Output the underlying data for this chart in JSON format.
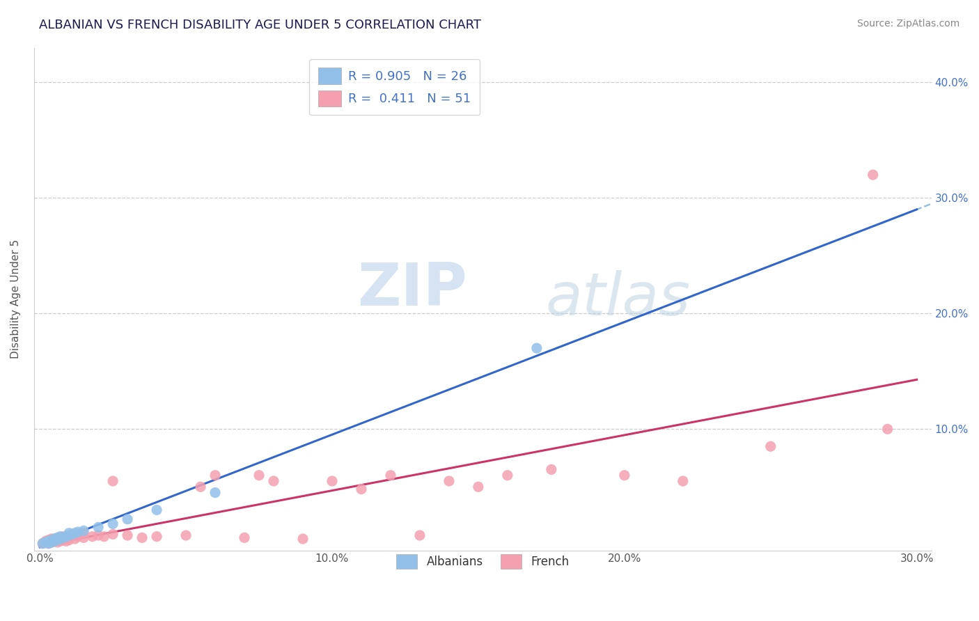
{
  "title": "ALBANIAN VS FRENCH DISABILITY AGE UNDER 5 CORRELATION CHART",
  "source": "Source: ZipAtlas.com",
  "ylabel": "Disability Age Under 5",
  "xlim": [
    -0.002,
    0.305
  ],
  "ylim": [
    -0.005,
    0.43
  ],
  "xtick_labels": [
    "0.0%",
    "10.0%",
    "20.0%",
    "30.0%"
  ],
  "xtick_vals": [
    0.0,
    0.1,
    0.2,
    0.3
  ],
  "ytick_labels": [
    "10.0%",
    "20.0%",
    "30.0%",
    "40.0%"
  ],
  "ytick_vals": [
    0.1,
    0.2,
    0.3,
    0.4
  ],
  "albanian_color": "#92c0e8",
  "french_color": "#f4a0b0",
  "albanian_line_color": "#3366cc",
  "french_line_color": "#cc3366",
  "dash_color": "#7ab0d8",
  "albanian_R": 0.905,
  "albanian_N": 26,
  "french_R": 0.411,
  "french_N": 51,
  "watermark_zip": "ZIP",
  "watermark_atlas": "atlas",
  "albanian_scatter": [
    [
      0.001,
      0.001
    ],
    [
      0.002,
      0.002
    ],
    [
      0.003,
      0.001
    ],
    [
      0.003,
      0.003
    ],
    [
      0.004,
      0.002
    ],
    [
      0.004,
      0.004
    ],
    [
      0.005,
      0.003
    ],
    [
      0.005,
      0.005
    ],
    [
      0.006,
      0.004
    ],
    [
      0.006,
      0.006
    ],
    [
      0.007,
      0.005
    ],
    [
      0.007,
      0.007
    ],
    [
      0.008,
      0.006
    ],
    [
      0.009,
      0.007
    ],
    [
      0.01,
      0.008
    ],
    [
      0.01,
      0.01
    ],
    [
      0.011,
      0.009
    ],
    [
      0.012,
      0.01
    ],
    [
      0.013,
      0.011
    ],
    [
      0.015,
      0.012
    ],
    [
      0.02,
      0.015
    ],
    [
      0.025,
      0.018
    ],
    [
      0.03,
      0.022
    ],
    [
      0.04,
      0.03
    ],
    [
      0.06,
      0.045
    ],
    [
      0.17,
      0.17
    ]
  ],
  "french_scatter": [
    [
      0.001,
      0.001
    ],
    [
      0.002,
      0.002
    ],
    [
      0.002,
      0.003
    ],
    [
      0.003,
      0.001
    ],
    [
      0.003,
      0.004
    ],
    [
      0.004,
      0.002
    ],
    [
      0.004,
      0.005
    ],
    [
      0.005,
      0.003
    ],
    [
      0.005,
      0.005
    ],
    [
      0.006,
      0.002
    ],
    [
      0.006,
      0.004
    ],
    [
      0.007,
      0.003
    ],
    [
      0.007,
      0.006
    ],
    [
      0.008,
      0.004
    ],
    [
      0.008,
      0.007
    ],
    [
      0.009,
      0.003
    ],
    [
      0.009,
      0.005
    ],
    [
      0.01,
      0.004
    ],
    [
      0.01,
      0.006
    ],
    [
      0.012,
      0.005
    ],
    [
      0.013,
      0.007
    ],
    [
      0.015,
      0.006
    ],
    [
      0.015,
      0.01
    ],
    [
      0.018,
      0.007
    ],
    [
      0.02,
      0.008
    ],
    [
      0.022,
      0.007
    ],
    [
      0.025,
      0.009
    ],
    [
      0.025,
      0.055
    ],
    [
      0.03,
      0.008
    ],
    [
      0.035,
      0.006
    ],
    [
      0.04,
      0.007
    ],
    [
      0.05,
      0.008
    ],
    [
      0.055,
      0.05
    ],
    [
      0.06,
      0.06
    ],
    [
      0.07,
      0.006
    ],
    [
      0.075,
      0.06
    ],
    [
      0.08,
      0.055
    ],
    [
      0.09,
      0.005
    ],
    [
      0.1,
      0.055
    ],
    [
      0.11,
      0.048
    ],
    [
      0.12,
      0.06
    ],
    [
      0.13,
      0.008
    ],
    [
      0.14,
      0.055
    ],
    [
      0.15,
      0.05
    ],
    [
      0.16,
      0.06
    ],
    [
      0.175,
      0.065
    ],
    [
      0.2,
      0.06
    ],
    [
      0.22,
      0.055
    ],
    [
      0.25,
      0.085
    ],
    [
      0.29,
      0.1
    ],
    [
      0.285,
      0.32
    ]
  ]
}
